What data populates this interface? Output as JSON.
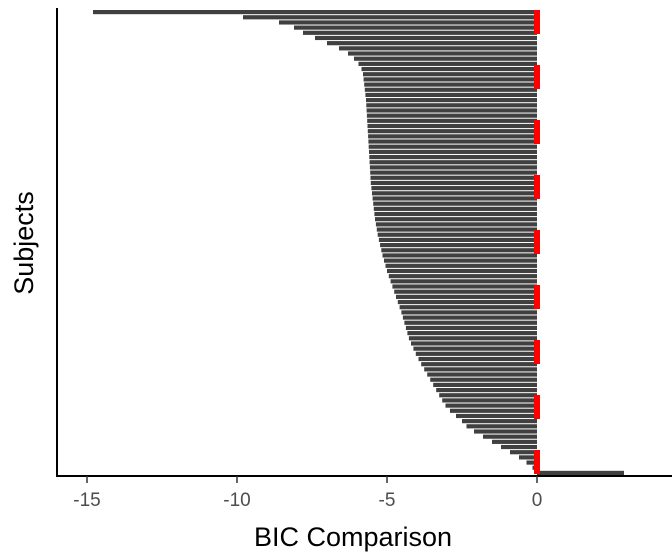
{
  "chart_data": {
    "type": "bar",
    "orientation": "horizontal",
    "title": "",
    "xlabel": "BIC Comparison",
    "ylabel": "Subjects",
    "xlim": [
      -16.0,
      4.5
    ],
    "xticks": [
      -15,
      -10,
      -5,
      0
    ],
    "xtick_labels": [
      "-15",
      "-10",
      "-5",
      "0"
    ],
    "grid": false,
    "legend": "none",
    "reference_line": {
      "x": 0,
      "style": "dashed",
      "color": "#ff0000"
    },
    "bar_color": "#404040",
    "series": [
      {
        "values": [
          -14.8,
          -9.8,
          -8.6,
          -8.1,
          -7.8,
          -7.4,
          -7.0,
          -6.6,
          -6.3,
          -6.1,
          -5.95,
          -5.85,
          -5.8,
          -5.78,
          -5.76,
          -5.74,
          -5.72,
          -5.7,
          -5.69,
          -5.68,
          -5.67,
          -5.66,
          -5.65,
          -5.64,
          -5.63,
          -5.62,
          -5.61,
          -5.6,
          -5.59,
          -5.58,
          -5.57,
          -5.56,
          -5.55,
          -5.54,
          -5.52,
          -5.5,
          -5.48,
          -5.46,
          -5.44,
          -5.42,
          -5.4,
          -5.37,
          -5.34,
          -5.31,
          -5.27,
          -5.23,
          -5.19,
          -5.15,
          -5.1,
          -5.05,
          -5.0,
          -4.94,
          -4.88,
          -4.82,
          -4.76,
          -4.7,
          -4.64,
          -4.58,
          -4.52,
          -4.47,
          -4.42,
          -4.37,
          -4.32,
          -4.27,
          -4.2,
          -4.12,
          -4.04,
          -3.95,
          -3.86,
          -3.76,
          -3.66,
          -3.56,
          -3.46,
          -3.36,
          -3.26,
          -3.16,
          -3.05,
          -2.9,
          -2.7,
          -2.5,
          -2.35,
          -2.1,
          -1.8,
          -1.5,
          -1.2,
          -0.9,
          -0.6,
          -0.35,
          -0.15,
          2.9
        ]
      }
    ]
  }
}
